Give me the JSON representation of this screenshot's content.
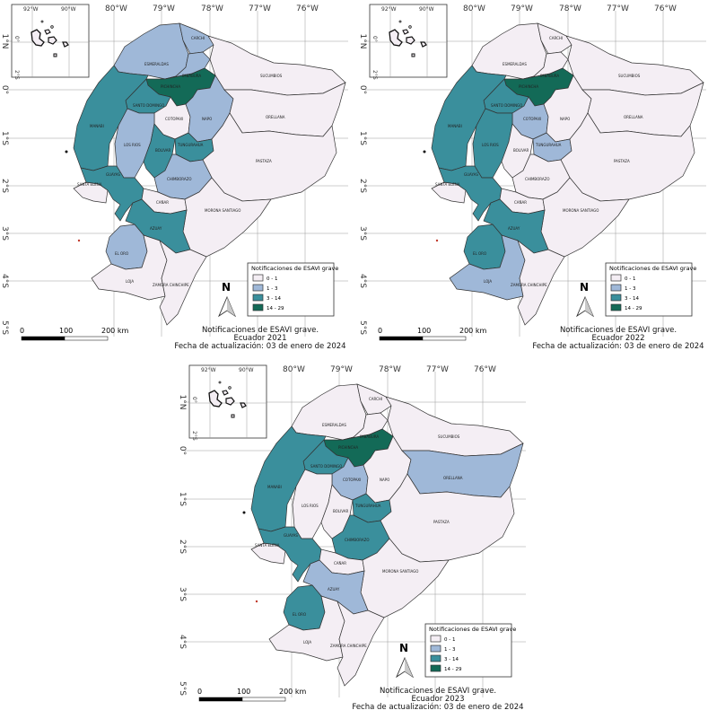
{
  "colors": {
    "c0": "#f4eef4",
    "c1": "#9fb8d8",
    "c2": "#3a8f9c",
    "c3": "#136a57",
    "dot": "#c0392b"
  },
  "legend": {
    "title": "Notificaciones de ESAVI grave",
    "items": [
      {
        "label": "0 - 1",
        "color": "#f4eef4"
      },
      {
        "label": "1 - 3",
        "color": "#9fb8d8"
      },
      {
        "label": "3 - 14",
        "color": "#3a8f9c"
      },
      {
        "label": "14 - 29",
        "color": "#136a57"
      }
    ]
  },
  "axes": {
    "lon": [
      "80°W",
      "79°W",
      "78°W",
      "77°W",
      "76°W"
    ],
    "lat": [
      "1°N",
      "0°",
      "1°S",
      "2°S",
      "3°S",
      "4°S",
      "5°S"
    ],
    "inset_lon": [
      "92°W",
      "90°W"
    ],
    "inset_lat": [
      "0°",
      "2°S"
    ]
  },
  "north": "N",
  "scalebar": {
    "labels": [
      "0",
      "100",
      "200 km"
    ]
  },
  "provinces": [
    "ESMERALDAS",
    "CARCHI",
    "IMBABURA",
    "PICHINCHA",
    "SUCUMBIOS",
    "SANTO DOMINGO",
    "MANABI",
    "COTOPAXI",
    "NAPO",
    "ORELLANA",
    "LOS RIOS",
    "BOLIVAR",
    "TUNGURAHUA",
    "PASTAZA",
    "SANTA ELENA",
    "GUAYAS",
    "CHIMBORAZO",
    "CAÑAR",
    "MORONA SANTIAGO",
    "AZUAY",
    "EL ORO",
    "LOJA",
    "ZAMORA CHINCHIPE"
  ],
  "maps": [
    {
      "title": "Notificaciones de ESAVI grave.",
      "subtitle": "Ecuador 2021",
      "date": "Fecha de actualización: 03 de enero de 2024",
      "classes": {
        "ESMERALDAS": 1,
        "CARCHI": 1,
        "IMBABURA": 1,
        "PICHINCHA": 3,
        "SUCUMBIOS": 0,
        "SANTO DOMINGO": 2,
        "MANABI": 2,
        "COTOPAXI": 0,
        "NAPO": 1,
        "ORELLANA": 0,
        "LOS RIOS": 1,
        "BOLIVAR": 2,
        "TUNGURAHUA": 2,
        "PASTAZA": 0,
        "SANTA ELENA": 0,
        "GUAYAS": 2,
        "CHIMBORAZO": 1,
        "CAÑAR": 0,
        "MORONA SANTIAGO": 0,
        "AZUAY": 2,
        "EL ORO": 1,
        "LOJA": 0,
        "ZAMORA CHINCHIPE": 0
      }
    },
    {
      "title": "Notificaciones de ESAVI grave.",
      "subtitle": "Ecuador 2022",
      "date": "Fecha de actualización: 03 de enero de 2024",
      "classes": {
        "ESMERALDAS": 0,
        "CARCHI": 0,
        "IMBABURA": 0,
        "PICHINCHA": 3,
        "SUCUMBIOS": 0,
        "SANTO DOMINGO": 2,
        "MANABI": 2,
        "COTOPAXI": 1,
        "NAPO": 0,
        "ORELLANA": 0,
        "LOS RIOS": 2,
        "BOLIVAR": 0,
        "TUNGURAHUA": 1,
        "PASTAZA": 0,
        "SANTA ELENA": 0,
        "GUAYAS": 2,
        "CHIMBORAZO": 0,
        "CAÑAR": 0,
        "MORONA SANTIAGO": 0,
        "AZUAY": 2,
        "EL ORO": 2,
        "LOJA": 1,
        "ZAMORA CHINCHIPE": 0
      }
    },
    {
      "title": "Notificaciones de ESAVI grave.",
      "subtitle": "Ecuador 2023",
      "date": "Fecha de actualización: 03 de enero de 2024",
      "classes": {
        "ESMERALDAS": 0,
        "CARCHI": 0,
        "IMBABURA": 0,
        "PICHINCHA": 3,
        "SUCUMBIOS": 0,
        "SANTO DOMINGO": 2,
        "MANABI": 2,
        "COTOPAXI": 1,
        "NAPO": 0,
        "ORELLANA": 1,
        "LOS RIOS": 0,
        "BOLIVAR": 0,
        "TUNGURAHUA": 2,
        "PASTAZA": 0,
        "SANTA ELENA": 0,
        "GUAYAS": 2,
        "CHIMBORAZO": 2,
        "CAÑAR": 0,
        "MORONA SANTIAGO": 0,
        "AZUAY": 1,
        "EL ORO": 2,
        "LOJA": 0,
        "ZAMORA CHINCHIPE": 0
      }
    }
  ]
}
